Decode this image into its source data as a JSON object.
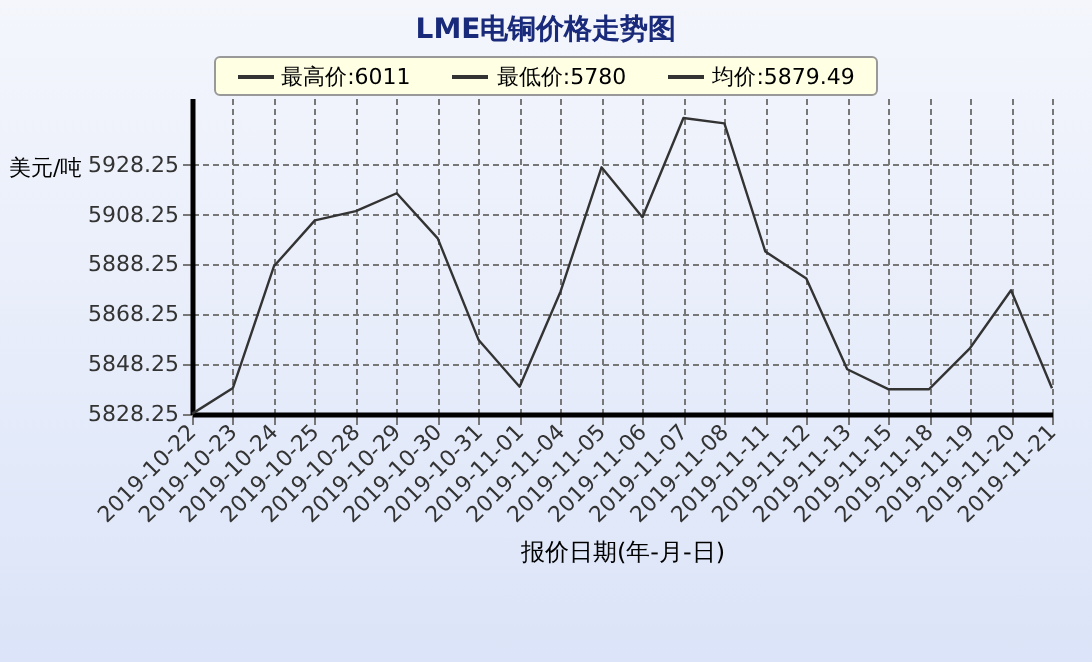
{
  "chart_data": {
    "type": "line",
    "title": "LME电铜价格走势图",
    "xlabel": "报价日期(年-月-日)",
    "ylabel": "美元/吨",
    "annotations": [
      "最高价:6011",
      "最低价:5780",
      "均价:5879.49"
    ],
    "categories": [
      "2019-10-22",
      "2019-10-23",
      "2019-10-24",
      "2019-10-25",
      "2019-10-28",
      "2019-10-29",
      "2019-10-30",
      "2019-10-31",
      "2019-11-01",
      "2019-11-04",
      "2019-11-05",
      "2019-11-06",
      "2019-11-07",
      "2019-11-08",
      "2019-11-11",
      "2019-11-12",
      "2019-11-13",
      "2019-11-15",
      "2019-11-18",
      "2019-11-19",
      "2019-11-20",
      "2019-11-21"
    ],
    "series": [
      {
        "color": "#333333",
        "values": [
          5828.3,
          5838.7,
          5887.5,
          5905.9,
          5909.6,
          5916.8,
          5898.7,
          5857.9,
          5839.2,
          5877.4,
          5927.2,
          5907.2,
          5947,
          5944.8,
          5893.4,
          5882.6,
          5846.2,
          5838.2,
          5838.2,
          5854.7,
          5877.9,
          5838.6
        ]
      }
    ],
    "ylim": [
      5828.25,
      5955
    ],
    "yticks": [
      5828.25,
      5848.25,
      5868.25,
      5888.25,
      5908.25,
      5928.25
    ],
    "grid": true,
    "marker": "none",
    "line_style": "solid"
  }
}
